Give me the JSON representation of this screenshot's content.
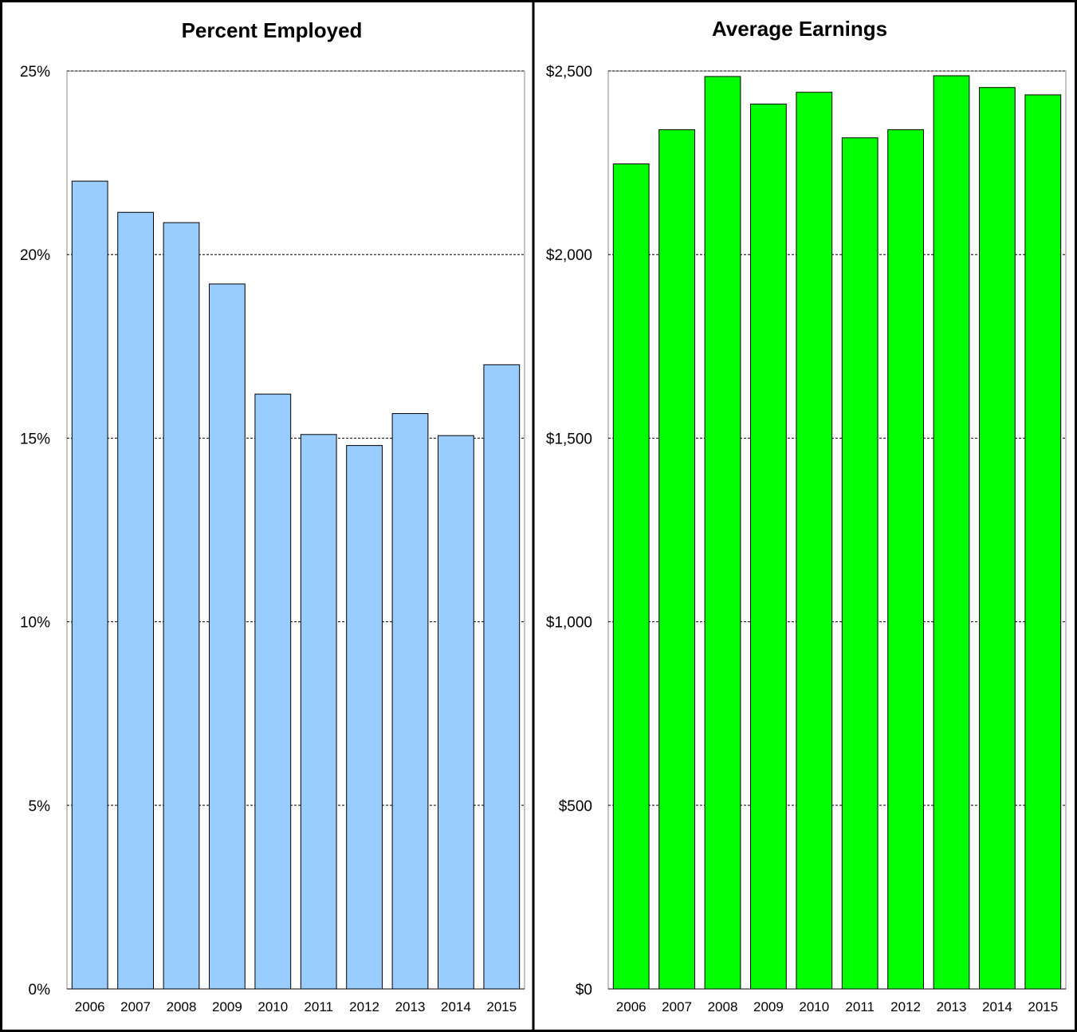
{
  "chart_data": [
    {
      "type": "bar",
      "title": "Percent Employed",
      "categories": [
        "2006",
        "2007",
        "2008",
        "2009",
        "2010",
        "2011",
        "2012",
        "2013",
        "2014",
        "2015"
      ],
      "values": [
        22.0,
        21.15,
        20.87,
        19.2,
        16.2,
        15.1,
        14.8,
        15.67,
        15.07,
        17.0
      ],
      "value_format": "percent",
      "ylim": [
        0,
        25
      ],
      "yticks": [
        0,
        5,
        10,
        15,
        20,
        25
      ],
      "ytick_labels": [
        "0%",
        "5%",
        "10%",
        "15%",
        "20%",
        "25%"
      ],
      "xlabel": "",
      "ylabel": "",
      "grid": true,
      "bar_color": "#99ccff"
    },
    {
      "type": "bar",
      "title": "Average Earnings",
      "categories": [
        "2006",
        "2007",
        "2008",
        "2009",
        "2010",
        "2011",
        "2012",
        "2013",
        "2014",
        "2015"
      ],
      "values": [
        2247,
        2340,
        2485,
        2410,
        2442,
        2318,
        2340,
        2487,
        2455,
        2435
      ],
      "value_format": "currency",
      "ylim": [
        0,
        2500
      ],
      "yticks": [
        0,
        500,
        1000,
        1500,
        2000,
        2500
      ],
      "ytick_labels": [
        "$0",
        "$500",
        "$1,000",
        "$1,500",
        "$2,000",
        "$2,500"
      ],
      "xlabel": "",
      "ylabel": "",
      "grid": true,
      "bar_color": "#00ff00"
    }
  ]
}
